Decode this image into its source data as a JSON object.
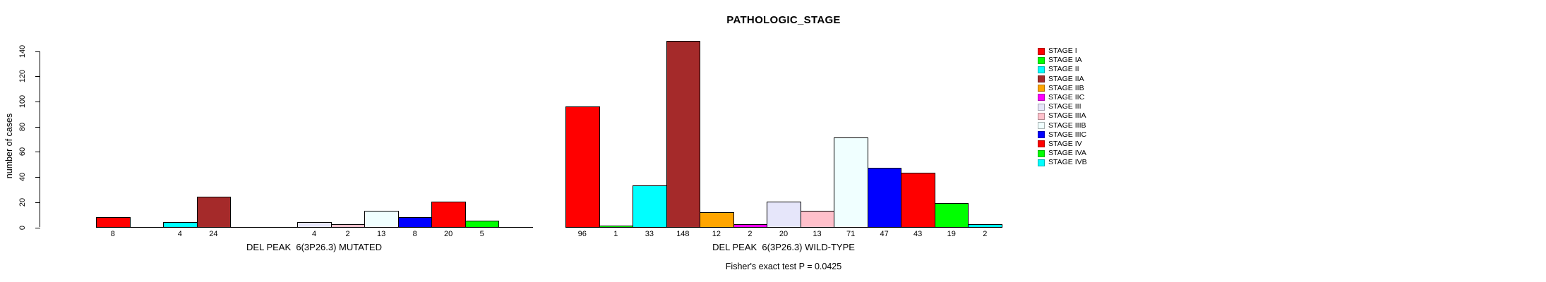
{
  "chart_data": {
    "type": "bar",
    "title": "PATHOLOGIC_STAGE",
    "ylabel": "number of cases",
    "ylim": [
      0,
      140
    ],
    "yticks": [
      0,
      20,
      40,
      60,
      80,
      100,
      120,
      140
    ],
    "grid": false,
    "legend_position": "right",
    "categories": [
      "STAGE I",
      "STAGE IA",
      "STAGE II",
      "STAGE IIA",
      "STAGE IIB",
      "STAGE IIC",
      "STAGE III",
      "STAGE IIIA",
      "STAGE IIIB",
      "STAGE IIIC",
      "STAGE IV",
      "STAGE IVA",
      "STAGE IVB"
    ],
    "colors": [
      "#FF0000",
      "#00FF00",
      "#00FFFF",
      "#A52A2A",
      "#FFA500",
      "#FF00FF",
      "#E6E6FA",
      "#FFC0CB",
      "#F0FFFF",
      "#0000FF",
      "#FF0000",
      "#00FF00",
      "#00FFFF"
    ],
    "series": [
      {
        "name": "DEL PEAK  6(3P26.3) MUTATED",
        "values": [
          8,
          0,
          4,
          24,
          0,
          0,
          4,
          2,
          13,
          8,
          20,
          5,
          0
        ]
      },
      {
        "name": "DEL PEAK  6(3P26.3) WILD-TYPE",
        "values": [
          96,
          1,
          33,
          148,
          12,
          2,
          20,
          13,
          71,
          47,
          43,
          19,
          2
        ]
      }
    ],
    "annotation": "Fisher's exact test P = 0.0425"
  }
}
